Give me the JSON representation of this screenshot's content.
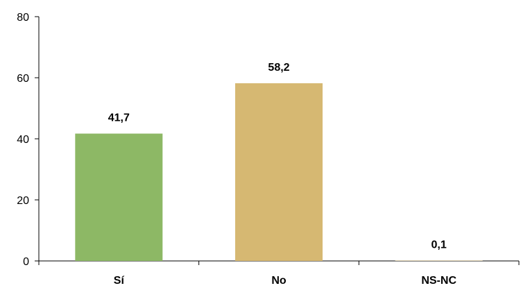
{
  "chart_data": {
    "type": "bar",
    "categories": [
      "Sí",
      "No",
      "NS-NC"
    ],
    "values": [
      41.7,
      58.2,
      0.1
    ],
    "data_labels": [
      "41,7",
      "58,2",
      "0,1"
    ],
    "yticks": [
      0,
      20,
      40,
      60,
      80
    ],
    "ylim": [
      0,
      80
    ],
    "colors": [
      "#8db865",
      "#d6b872",
      "#d6b872"
    ],
    "grid": false,
    "legend": "none"
  }
}
